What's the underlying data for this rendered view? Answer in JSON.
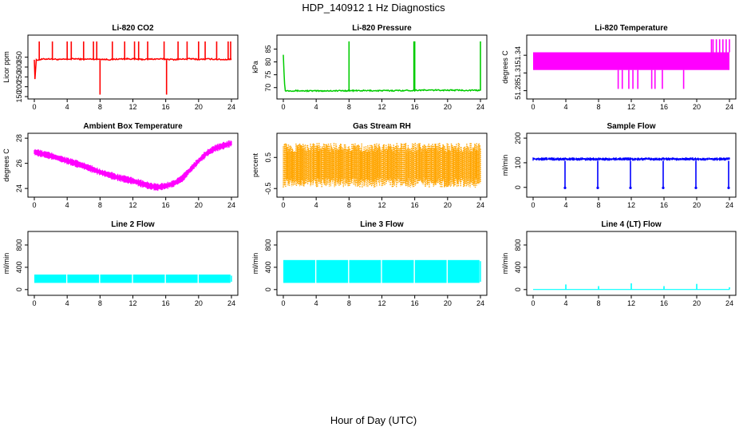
{
  "page": {
    "title": "HDP_140912  1 Hz Diagnostics",
    "xlabel": "Hour of Day (UTC)"
  },
  "chart_data": [
    {
      "type": "line",
      "title": "Li-820 CO2",
      "ylabel": "Licor ppm",
      "ylim": [
        150,
        450
      ],
      "yticks": [
        150,
        200,
        250,
        300,
        350
      ],
      "xlim": [
        0,
        24
      ],
      "xticks": [
        0,
        4,
        8,
        12,
        16,
        20,
        24
      ],
      "color": "#ff0000",
      "series": [
        {
          "name": "CO2",
          "x": [
            0,
            0.1,
            0.2,
            1,
            2,
            3,
            4,
            5,
            6,
            7,
            8,
            9,
            10,
            11,
            12,
            13,
            14,
            15,
            16,
            17,
            18,
            19,
            20,
            21,
            22,
            23,
            24
          ],
          "y": [
            340,
            215,
            335,
            340,
            342,
            338,
            340,
            342,
            339,
            341,
            340,
            338,
            340,
            342,
            341,
            339,
            340,
            341,
            340,
            338,
            340,
            342,
            339,
            341,
            340,
            338,
            340
          ]
        }
      ],
      "spikes_up": [
        0.6,
        2.2,
        4,
        4.5,
        6,
        7.2,
        7.6,
        9.5,
        11,
        12.2,
        12.7,
        13.8,
        15.8,
        17.5,
        18.6,
        20,
        20.8,
        22.2,
        23.6,
        23.9
      ],
      "spikes_down": [
        8,
        16.1
      ],
      "spike_top": 430,
      "spike_bottom": 160
    },
    {
      "type": "line",
      "title": "Li-820 Pressure",
      "ylabel": "kPa",
      "ylim": [
        66.5,
        89.5
      ],
      "yticks": [
        70,
        75,
        80,
        85
      ],
      "xlim": [
        0,
        24
      ],
      "xticks": [
        0,
        4,
        8,
        12,
        16,
        20,
        24
      ],
      "color": "#00cc00",
      "series": [
        {
          "name": "Pressure",
          "x": [
            0,
            0.1,
            0.2,
            4,
            8,
            12,
            16,
            16.1,
            20,
            24
          ],
          "y": [
            83,
            75,
            68.8,
            68.7,
            68.8,
            68.8,
            68.9,
            69.0,
            69.0,
            68.9
          ]
        }
      ],
      "spikes_up": [
        8,
        15.9,
        16,
        24
      ],
      "spike_top": 88,
      "spike_bottom": 68.8
    },
    {
      "type": "area",
      "title": "Li-820 Temperature",
      "ylabel": "degrees C",
      "ylim": [
        51.27,
        51.37
      ],
      "yticks": [
        51.28,
        51.31,
        51.34
      ],
      "xlim": [
        0,
        24
      ],
      "xticks": [
        0,
        4,
        8,
        12,
        16,
        20,
        24
      ],
      "color": "#ff00ff",
      "band": [
        51.315,
        51.345
      ],
      "spikes_up": [
        21.8,
        22,
        22.4,
        22.8,
        23.2,
        23.6,
        24
      ],
      "spike_top": 51.367,
      "spikes_down": [
        10.4,
        10.9,
        11.7,
        12.2,
        12.8,
        14.5,
        14.9,
        15.8,
        18.4
      ],
      "spike_bottom": 51.283
    },
    {
      "type": "area",
      "title": "Ambient Box Temperature",
      "ylabel": "degrees C",
      "ylim": [
        23.5,
        28.2
      ],
      "yticks": [
        24,
        26,
        28
      ],
      "xlim": [
        0,
        24
      ],
      "xticks": [
        0,
        4,
        8,
        12,
        16,
        20,
        24
      ],
      "color": "#ff00ff",
      "series": [
        {
          "name": "Temperature",
          "x": [
            0,
            2,
            4,
            6,
            8,
            10,
            12,
            14,
            15,
            16,
            17,
            18,
            19,
            20,
            21,
            22,
            23,
            24
          ],
          "y": [
            26.9,
            26.6,
            26.2,
            25.8,
            25.3,
            24.9,
            24.6,
            24.2,
            24.1,
            24.2,
            24.4,
            24.8,
            25.5,
            26.2,
            26.8,
            27.2,
            27.4,
            27.6
          ]
        }
      ],
      "band_halfwidth": 0.25
    },
    {
      "type": "scatter",
      "title": "Gas Stream RH",
      "ylabel": "percent",
      "ylim": [
        -0.7,
        1.2
      ],
      "yticks": [
        -0.5,
        0.5
      ],
      "xlim": [
        0,
        24
      ],
      "xticks": [
        0,
        4,
        8,
        12,
        16,
        20,
        24
      ],
      "color": "#ffa500",
      "band": [
        -0.55,
        1.05
      ]
    },
    {
      "type": "line",
      "title": "Sample Flow",
      "ylabel": "ml/min",
      "ylim": [
        -30,
        210
      ],
      "yticks": [
        0,
        100,
        200
      ],
      "xlim": [
        0,
        24
      ],
      "xticks": [
        0,
        4,
        8,
        12,
        16,
        20,
        24
      ],
      "color": "#0000ff",
      "band": [
        108,
        122
      ],
      "spikes_down": [
        3.9,
        7.9,
        11.9,
        15.9,
        19.9,
        23.9
      ],
      "spike_bottom": -2
    },
    {
      "type": "area",
      "title": "Line 2 Flow",
      "ylabel": "ml/min",
      "ylim": [
        -60,
        1000
      ],
      "yticks": [
        0,
        400,
        800
      ],
      "xlim": [
        0,
        24
      ],
      "xticks": [
        0,
        4,
        8,
        12,
        16,
        20,
        24
      ],
      "color": "#00ffff",
      "band": [
        120,
        270
      ],
      "gaps": [
        3.95,
        7.95,
        11.95,
        15.95,
        19.95,
        23.95
      ]
    },
    {
      "type": "area",
      "title": "Line 3 Flow",
      "ylabel": "ml/min",
      "ylim": [
        -60,
        1000
      ],
      "yticks": [
        0,
        400,
        800
      ],
      "xlim": [
        0,
        24
      ],
      "xticks": [
        0,
        4,
        8,
        12,
        16,
        20,
        24
      ],
      "color": "#00ffff",
      "band": [
        120,
        530
      ],
      "gaps": [
        3.95,
        7.95,
        11.95,
        15.95,
        19.95,
        23.95
      ]
    },
    {
      "type": "line",
      "title": "Line 4 (LT) Flow",
      "ylabel": "ml/min",
      "ylim": [
        -60,
        1000
      ],
      "yticks": [
        0,
        400,
        800
      ],
      "xlim": [
        0,
        24
      ],
      "xticks": [
        0,
        4,
        8,
        12,
        16,
        20,
        24
      ],
      "color": "#00ffff",
      "baseline": 2,
      "spikes_up": [
        4,
        8,
        12,
        16,
        20,
        24
      ],
      "spike_heights": [
        90,
        60,
        110,
        60,
        100,
        40
      ]
    }
  ]
}
